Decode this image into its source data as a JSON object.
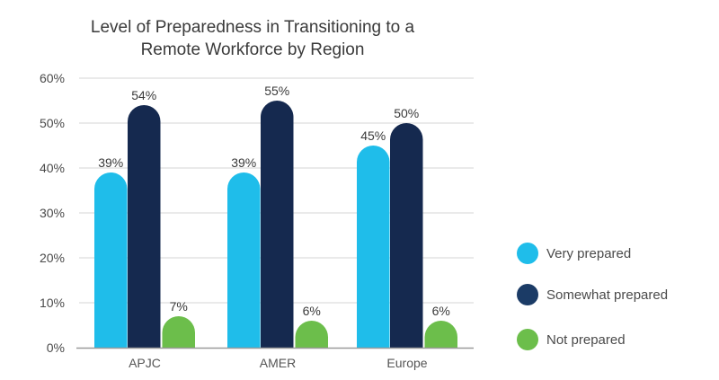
{
  "chart_data": {
    "type": "bar",
    "title_lines": [
      "Level of Preparedness in Transitioning to a",
      "Remote Workforce by Region"
    ],
    "title": "Level of Preparedness in Transitioning to a Remote Workforce by Region",
    "xlabel": "",
    "ylabel": "",
    "categories": [
      "APJC",
      "AMER",
      "Europe"
    ],
    "series": [
      {
        "name": "Very prepared",
        "color": "#1fbdea",
        "values": [
          39,
          39,
          45
        ],
        "labels": [
          "39%",
          "39%",
          "45%"
        ]
      },
      {
        "name": "Somewhat prepared",
        "color": "#15294f",
        "values": [
          54,
          55,
          50
        ],
        "labels": [
          "54%",
          "55%",
          "50%"
        ]
      },
      {
        "name": "Not prepared",
        "color": "#6cbe4b",
        "values": [
          7,
          6,
          6
        ],
        "labels": [
          "7%",
          "6%",
          "6%"
        ]
      }
    ],
    "ylim": [
      0,
      60
    ],
    "yticks": [
      0,
      10,
      20,
      30,
      40,
      50,
      60
    ],
    "ytick_labels": [
      "0%",
      "10%",
      "20%",
      "30%",
      "40%",
      "50%",
      "60%"
    ],
    "grid": true,
    "legend_position": "right",
    "legend_colors": {
      "very": "#1fbdea",
      "somewhat": "#1b3b66",
      "not": "#6cbe4b"
    }
  }
}
